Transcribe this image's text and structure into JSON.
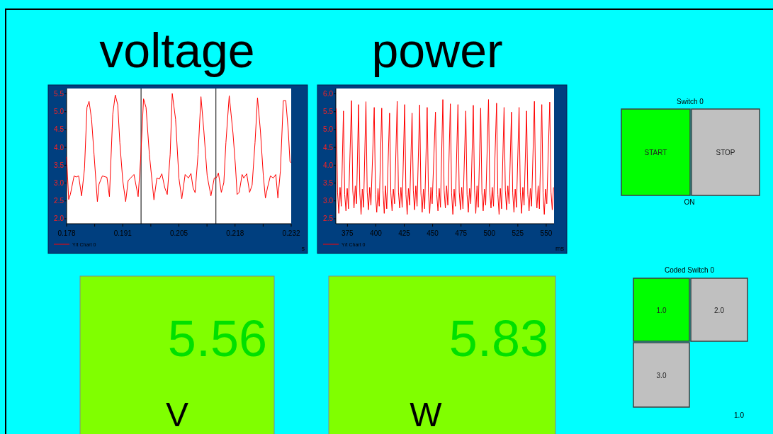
{
  "chart_data": [
    {
      "type": "line",
      "title": "voltage",
      "xlabel": "s",
      "legend": "bottom left",
      "xlim": [
        0.178,
        0.232
      ],
      "xticks": [
        {
          "value": 0.178,
          "label": "0.178"
        },
        {
          "value": 0.18475,
          "label": null
        },
        {
          "value": 0.1915,
          "label": "0.191"
        },
        {
          "value": 0.19825,
          "label": null
        },
        {
          "value": 0.205,
          "label": "0.205"
        },
        {
          "value": 0.21175,
          "label": null
        },
        {
          "value": 0.2185,
          "label": "0.218"
        },
        {
          "value": 0.22525,
          "label": null
        },
        {
          "value": 0.232,
          "label": "0.232"
        }
      ],
      "ylim": [
        1.86,
        5.65
      ],
      "yticks": [
        {
          "value": 2,
          "label": "2.0"
        },
        {
          "value": 2.5,
          "label": "2.5"
        },
        {
          "value": 3,
          "label": "3.0"
        },
        {
          "value": 3.5,
          "label": "3.5"
        },
        {
          "value": 4,
          "label": "4.0"
        },
        {
          "value": 4.5,
          "label": "4.5"
        },
        {
          "value": 5,
          "label": "5.0"
        },
        {
          "value": 5.5,
          "label": "5.5"
        }
      ],
      "ref_lines": [
        {
          "axis": "x",
          "value": 0.1959,
          "color": "#000000"
        },
        {
          "axis": "x",
          "value": 0.2139,
          "color": "#000000"
        }
      ],
      "series": [
        {
          "name": "Y/t Chart 0",
          "color": "#ff0000",
          "x": [
            0.178,
            0.1785,
            0.1789,
            0.1798,
            0.1803,
            0.1809,
            0.1816,
            0.1823,
            0.1829,
            0.1834,
            0.184,
            0.1846,
            0.1854,
            0.1858,
            0.1866,
            0.1877,
            0.1883,
            0.1891,
            0.1897,
            0.1903,
            0.1908,
            0.1915,
            0.1922,
            0.1928,
            0.1942,
            0.1952,
            0.1958,
            0.1965,
            0.1971,
            0.1979,
            0.199,
            0.1997,
            0.2003,
            0.2009,
            0.2016,
            0.2022,
            0.2029,
            0.2034,
            0.2042,
            0.205,
            0.2057,
            0.2065,
            0.2073,
            0.2079,
            0.2084,
            0.2089,
            0.2096,
            0.2103,
            0.211,
            0.2118,
            0.2127,
            0.2135,
            0.214,
            0.2145,
            0.2152,
            0.2158,
            0.2163,
            0.2171,
            0.218,
            0.2186,
            0.219,
            0.2195,
            0.2202,
            0.2206,
            0.2213,
            0.222,
            0.2226,
            0.2233,
            0.2239,
            0.2246,
            0.2253,
            0.2258,
            0.2263,
            0.227,
            0.2277,
            0.2283,
            0.2288,
            0.2294,
            0.2301,
            0.2307,
            0.2313,
            0.2317,
            0.232
          ],
          "values": [
            3.73,
            2.54,
            2.68,
            3.2,
            3.17,
            3.2,
            2.64,
            3.4,
            5.12,
            5.29,
            4.79,
            3.8,
            2.48,
            2.97,
            3.2,
            3.16,
            2.62,
            4.93,
            5.47,
            5.19,
            4.13,
            3.07,
            2.48,
            3.07,
            3.24,
            2.62,
            3.67,
            5.36,
            5.12,
            3.8,
            2.53,
            3.14,
            3.11,
            3.26,
            2.87,
            2.68,
            3.8,
            5.51,
            4.79,
            3.14,
            2.56,
            3.24,
            3.14,
            3.27,
            2.87,
            2.73,
            3.8,
            5.42,
            4.46,
            3.2,
            2.64,
            3.14,
            3.15,
            3.28,
            2.74,
            3.01,
            4.13,
            5.45,
            4.4,
            3.47,
            2.68,
            2.74,
            3.24,
            3.14,
            3.26,
            2.74,
            2.94,
            4.13,
            5.39,
            4.46,
            3.2,
            2.58,
            2.87,
            3.2,
            3.14,
            3.24,
            2.58,
            3.34,
            5.31,
            5.31,
            4.46,
            3.6,
            3.57
          ]
        }
      ]
    },
    {
      "type": "line",
      "title": "power",
      "xlabel": "ms",
      "legend": "bottom left",
      "xlim": [
        364.8,
        556.9
      ],
      "xticks": [
        375,
        400,
        425,
        450,
        475,
        500,
        525,
        550
      ],
      "ylim": [
        2.36,
        6.15
      ],
      "yticks": [
        {
          "value": 2.5,
          "label": "2.5"
        },
        {
          "value": 3,
          "label": "3.0"
        },
        {
          "value": 3.5,
          "label": "3.5"
        },
        {
          "value": 4,
          "label": "4.0"
        },
        {
          "value": 4.5,
          "label": "4.5"
        },
        {
          "value": 5,
          "label": "5.0"
        },
        {
          "value": 5.5,
          "label": "5.5"
        },
        {
          "value": 6,
          "label": "6.0"
        }
      ],
      "series": [
        {
          "name": "Y/t Chart 0",
          "color": "#ff0000",
          "x": [
            365.2,
            366.3,
            367.4,
            368.5,
            369.6,
            371.5,
            372.6,
            373.7,
            374.8,
            375.9,
            378.6,
            379.7,
            380.8,
            381.9,
            383.0,
            384.8,
            385.9,
            387.0,
            388.1,
            389.2,
            391.3,
            392.4,
            393.5,
            394.6,
            395.7,
            398.6,
            399.7,
            400.8,
            401.9,
            403.0,
            405.2,
            406.3,
            407.4,
            408.5,
            409.6,
            412.1,
            413.2,
            414.3,
            415.4,
            416.5,
            418.8,
            419.9,
            421.0,
            422.1,
            423.2,
            425.4,
            426.5,
            427.6,
            428.7,
            429.8,
            431.9,
            433.0,
            434.1,
            435.2,
            436.3,
            438.6,
            439.7,
            440.8,
            441.9,
            443.0,
            445.2,
            446.3,
            447.4,
            448.5,
            449.6,
            452.5,
            453.6,
            454.7,
            455.8,
            456.9,
            459.0,
            460.1,
            461.2,
            462.3,
            463.4,
            465.6,
            466.7,
            467.8,
            468.9,
            470.0,
            472.3,
            473.4,
            474.5,
            475.6,
            476.7,
            479.2,
            480.3,
            481.4,
            482.5,
            483.6,
            485.8,
            486.9,
            488.0,
            489.1,
            490.2,
            492.3,
            493.4,
            494.5,
            495.6,
            496.7,
            499.2,
            500.3,
            501.4,
            502.5,
            503.6,
            506.3,
            507.4,
            508.5,
            509.6,
            510.7,
            512.9,
            514.0,
            515.1,
            516.2,
            517.3,
            519.4,
            520.5,
            521.6,
            522.7,
            523.8,
            526.1,
            527.2,
            528.3,
            529.4,
            530.5,
            532.7,
            533.8,
            534.9,
            536.0,
            537.1,
            539.6,
            540.7,
            541.8,
            542.9,
            544.0,
            546.1,
            547.2,
            548.3,
            549.4,
            550.5,
            553.1,
            554.2,
            555.3,
            556.4
          ],
          "values": [
            5.59,
            3.25,
            2.65,
            3.38,
            2.85,
            5.52,
            3.18,
            2.72,
            3.35,
            2.78,
            5.81,
            3.3,
            2.8,
            3.42,
            2.92,
            5.7,
            3.22,
            2.62,
            3.33,
            2.82,
            5.78,
            3.25,
            2.75,
            3.38,
            2.88,
            5.62,
            3.18,
            2.68,
            3.35,
            2.85,
            5.6,
            3.3,
            2.65,
            3.42,
            2.78,
            5.46,
            3.22,
            2.72,
            3.33,
            2.92,
            5.79,
            3.25,
            2.8,
            3.38,
            2.82,
            5.7,
            3.18,
            2.62,
            3.35,
            2.88,
            5.46,
            3.3,
            2.75,
            3.42,
            2.85,
            5.69,
            3.22,
            2.68,
            3.33,
            2.78,
            5.62,
            3.25,
            2.65,
            3.38,
            2.92,
            5.49,
            3.18,
            2.72,
            3.35,
            2.82,
            5.84,
            3.3,
            2.8,
            3.42,
            2.88,
            5.72,
            3.22,
            2.62,
            3.33,
            2.85,
            5.7,
            3.25,
            2.75,
            3.38,
            2.78,
            5.52,
            3.18,
            2.68,
            3.35,
            2.92,
            5.68,
            3.3,
            2.65,
            3.42,
            2.82,
            5.6,
            3.22,
            2.72,
            3.33,
            2.88,
            5.84,
            3.25,
            2.8,
            3.38,
            2.85,
            5.74,
            3.18,
            2.62,
            3.35,
            2.78,
            5.62,
            3.3,
            2.75,
            3.42,
            2.92,
            5.49,
            3.22,
            2.68,
            3.33,
            2.82,
            5.62,
            3.25,
            2.65,
            3.38,
            2.88,
            5.52,
            3.18,
            2.72,
            3.35,
            2.85,
            5.79,
            3.3,
            2.8,
            3.42,
            2.78,
            5.7,
            3.22,
            2.62,
            3.33,
            2.92,
            5.77,
            3.25,
            2.75,
            3.38
          ]
        }
      ]
    },
    {
      "type": "other",
      "annotations": [
        "5.56",
        "V"
      ]
    },
    {
      "type": "other",
      "annotations": [
        "5.83",
        "W"
      ]
    },
    {
      "type": "other",
      "title": "Switch 0",
      "annotations": [
        "START",
        "STOP",
        "ON"
      ]
    },
    {
      "type": "other",
      "title": "Coded Switch 0",
      "annotations": [
        "1.0",
        "2.0",
        "3.0",
        "1.0"
      ]
    }
  ]
}
